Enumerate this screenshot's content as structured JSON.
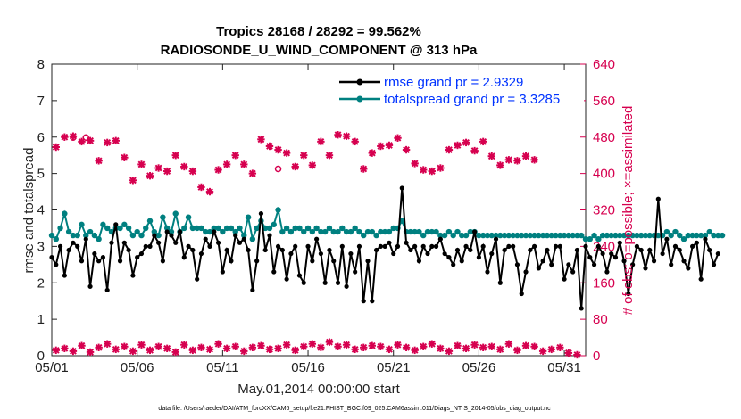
{
  "chart_data": {
    "type": "line",
    "title_line1": "Tropics 28168 / 28292 = 99.562%",
    "title_line2": "RADIOSONDE_U_WIND_COMPONENT @ 313 hPa",
    "xlabel": "May.01,2014 00:00:00 start",
    "ylabel_left": "rmse and totalspread",
    "ylabel_right": "# of obs: o=possible; ×=assimilated",
    "xlim": [
      0,
      31.25
    ],
    "ylim_left": [
      0,
      8
    ],
    "ylim_right": [
      0,
      640
    ],
    "x_ticks": [
      {
        "value": 0,
        "label": "05/01"
      },
      {
        "value": 5,
        "label": "05/06"
      },
      {
        "value": 10,
        "label": "05/11"
      },
      {
        "value": 15,
        "label": "05/16"
      },
      {
        "value": 20,
        "label": "05/21"
      },
      {
        "value": 25,
        "label": "05/26"
      },
      {
        "value": 30,
        "label": "05/31"
      }
    ],
    "y_ticks_left": [
      "0",
      "1",
      "2",
      "3",
      "4",
      "5",
      "6",
      "7",
      "8"
    ],
    "y_ticks_right": [
      "0",
      "80",
      "160",
      "240",
      "320",
      "400",
      "480",
      "560",
      "640"
    ],
    "x_step_days": 0.25,
    "series": [
      {
        "name": "rmse",
        "legend": "rmse grand pr = 2.9329",
        "color": "#000000",
        "axis": "left",
        "values": [
          2.7,
          2.5,
          3.0,
          2.2,
          2.9,
          3.1,
          3.0,
          2.6,
          3.2,
          1.9,
          2.8,
          2.6,
          2.7,
          1.8,
          3.1,
          3.6,
          2.6,
          3.1,
          2.9,
          2.2,
          2.7,
          2.8,
          3.0,
          3.0,
          3.3,
          3.1,
          2.6,
          3.4,
          3.3,
          3.1,
          3.4,
          2.7,
          3.0,
          2.9,
          2.1,
          2.8,
          3.2,
          3.0,
          3.4,
          3.1,
          2.3,
          2.9,
          2.6,
          3.3,
          3.1,
          3.2,
          2.9,
          1.8,
          2.6,
          3.9,
          2.9,
          3.3,
          2.3,
          3.0,
          2.9,
          2.1,
          2.8,
          3.0,
          2.2,
          2.0,
          3.0,
          2.6,
          3.2,
          2.8,
          2.0,
          2.9,
          2.6,
          2.0,
          3.0,
          1.9,
          2.8,
          2.3,
          3.0,
          1.5,
          2.6,
          1.5,
          2.9,
          3.0,
          3.0,
          3.1,
          2.8,
          3.0,
          4.6,
          3.1,
          2.9,
          3.0,
          2.6,
          3.0,
          2.8,
          3.0,
          3.0,
          3.2,
          2.8,
          2.7,
          2.5,
          2.9,
          2.6,
          3.0,
          2.9,
          3.4,
          2.7,
          3.0,
          2.3,
          2.8,
          3.2,
          2.0,
          2.9,
          3.0,
          3.0,
          2.5,
          1.7,
          2.3,
          2.9,
          3.0,
          2.4,
          2.6,
          2.9,
          2.5,
          3.0,
          3.0,
          2.1,
          2.5,
          2.3,
          2.9,
          1.3,
          3.0,
          2.7,
          2.5,
          3.0,
          2.8,
          2.3,
          2.8,
          2.7,
          3.1,
          2.6,
          1.7,
          2.5,
          3.0,
          2.9,
          2.4,
          2.9,
          2.6,
          4.3,
          2.8,
          3.2,
          2.5,
          3.0,
          2.9,
          2.6,
          2.4,
          3.0,
          3.1,
          2.1,
          3.2,
          2.9,
          2.5,
          2.8
        ]
      },
      {
        "name": "totalspread",
        "legend": "totalspread grand pr = 3.3285",
        "color": "#008080",
        "axis": "left",
        "values": [
          3.3,
          3.2,
          3.5,
          3.9,
          3.4,
          3.3,
          3.3,
          3.6,
          3.3,
          3.4,
          3.3,
          3.2,
          3.6,
          3.5,
          3.4,
          3.5,
          3.5,
          3.6,
          3.5,
          3.3,
          3.4,
          3.3,
          3.5,
          3.7,
          3.4,
          3.3,
          3.8,
          3.5,
          3.4,
          3.9,
          3.4,
          3.5,
          3.8,
          3.5,
          3.5,
          3.5,
          3.4,
          3.4,
          3.5,
          3.5,
          3.4,
          3.5,
          3.5,
          3.4,
          3.5,
          3.3,
          3.8,
          3.2,
          3.5,
          3.7,
          3.5,
          3.5,
          3.6,
          4.0,
          3.4,
          3.5,
          3.4,
          3.5,
          3.5,
          3.4,
          3.5,
          3.4,
          3.5,
          3.4,
          3.4,
          3.5,
          3.4,
          3.4,
          3.5,
          3.4,
          3.4,
          3.5,
          3.4,
          3.3,
          3.4,
          3.4,
          3.3,
          3.4,
          3.4,
          3.4,
          3.5,
          3.5,
          3.7,
          3.4,
          3.4,
          3.4,
          3.4,
          3.3,
          3.4,
          3.4,
          3.4,
          3.3,
          3.3,
          3.4,
          3.3,
          3.4,
          3.3,
          3.3,
          3.4,
          3.4,
          3.3,
          3.3,
          3.3,
          3.3,
          3.3,
          3.3,
          3.3,
          3.3,
          3.3,
          3.3,
          3.3,
          3.3,
          3.3,
          3.3,
          3.3,
          3.3,
          3.3,
          3.3,
          3.3,
          3.3,
          3.3,
          3.3,
          3.3,
          3.3,
          3.3,
          3.2,
          3.2,
          3.3,
          3.2,
          3.3,
          3.3,
          3.3,
          3.3,
          3.3,
          3.3,
          3.3,
          3.3,
          3.3,
          3.3,
          3.3,
          3.3,
          3.3,
          3.3,
          3.3,
          3.4,
          3.3,
          3.4,
          3.3,
          3.2,
          3.3,
          3.3,
          3.3,
          3.3,
          3.3,
          3.4,
          3.3,
          3.3,
          3.3
        ]
      },
      {
        "name": "obs_possible",
        "legend": "",
        "color": "#d6004f",
        "axis": "right",
        "marker": "o",
        "values": [
          null,
          null,
          null,
          null,
          null,
          479,
          null,
          null,
          479,
          null,
          null,
          null,
          null,
          null,
          null,
          null,
          null,
          null,
          null,
          null,
          null,
          null,
          null,
          null,
          null,
          null,
          null,
          null,
          null,
          null,
          null,
          null,
          null,
          null,
          null,
          null,
          null,
          null,
          null,
          null,
          null,
          null,
          null,
          null,
          null,
          null,
          null,
          null,
          null,
          null,
          null,
          null,
          null,
          410,
          null,
          null,
          null,
          null,
          null,
          null,
          null,
          null,
          null,
          null,
          null,
          null,
          null,
          null,
          null,
          null,
          null,
          null,
          null,
          null,
          null,
          null,
          null,
          null,
          null,
          null,
          null,
          null,
          null,
          null,
          null,
          null,
          null,
          null,
          null,
          null,
          null,
          null,
          null,
          null,
          null,
          null,
          null,
          null,
          null,
          null,
          null,
          null,
          null,
          null,
          null,
          null,
          null,
          null,
          null,
          null,
          null,
          null,
          null,
          null,
          null,
          null,
          null,
          null,
          null,
          null,
          null,
          null,
          null,
          null,
          null,
          null,
          null,
          null,
          null,
          null,
          null,
          null,
          null,
          null,
          null,
          null,
          null,
          null,
          null,
          null,
          null,
          null,
          null,
          null,
          null,
          null,
          null,
          null,
          null,
          null,
          null,
          null,
          null,
          null,
          null,
          null,
          null,
          null,
          null,
          null,
          null,
          null,
          null,
          null,
          null,
          null,
          null,
          null,
          null,
          null,
          null,
          null,
          null,
          null
        ]
      },
      {
        "name": "obs_assimilated_00z",
        "legend": "",
        "color": "#d6004f",
        "axis": "right",
        "marker": "x",
        "x_offset_days": 0,
        "values": [
          458,
          480,
          482,
          470,
          472,
          428,
          468,
          472,
          435,
          385,
          420,
          395,
          412,
          405,
          440,
          415,
          405,
          370,
          360,
          408,
          420,
          440,
          420,
          400,
          475,
          460,
          452,
          445,
          415,
          440,
          418,
          470,
          440,
          485,
          482,
          470,
          410,
          445,
          460,
          462,
          478,
          452,
          422,
          408,
          405,
          412,
          452,
          462,
          468,
          450,
          470,
          438,
          418,
          430,
          428,
          438,
          430
        ]
      },
      {
        "name": "obs_assimilated_12z",
        "legend": "",
        "color": "#d6004f",
        "axis": "right",
        "marker": "x",
        "x_offset_days": 0.5,
        "values": [
          12,
          16,
          10,
          22,
          8,
          18,
          26,
          14,
          20,
          10,
          24,
          12,
          20,
          16,
          8,
          24,
          12,
          18,
          14,
          26,
          16,
          20,
          10,
          18,
          22,
          14,
          16,
          24,
          12,
          20,
          26,
          18,
          30,
          20,
          24,
          14,
          18,
          22,
          20,
          14,
          24,
          18,
          12,
          20,
          26,
          16,
          10,
          22,
          16,
          24,
          18,
          20,
          14,
          26,
          12,
          22,
          20,
          10,
          14,
          18,
          6,
          2
        ]
      }
    ]
  },
  "footer": "data file: /Users/raeder/DAI/ATM_forcXX/CAM6_setup/f.e21.FHIST_BGC.f09_025.CAM6assim.011/Diags_NTrS_2014-05/obs_diag_output.nc"
}
